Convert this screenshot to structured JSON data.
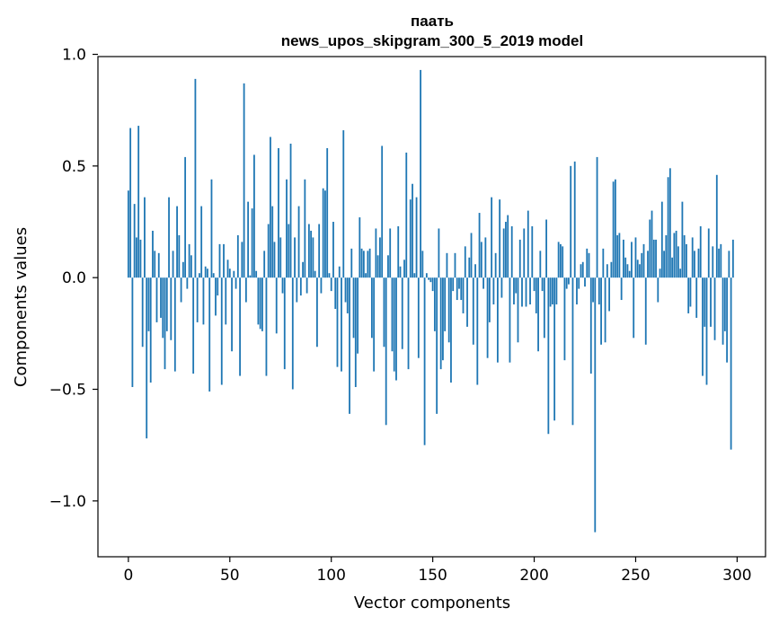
{
  "chart_data": {
    "type": "bar",
    "title": [
      "паать",
      "news_upos_skipgram_300_5_2019 model"
    ],
    "xlabel": "Vector components",
    "ylabel": "Components values",
    "xlim": [
      -15,
      314
    ],
    "ylim": [
      -1.25,
      0.99
    ],
    "xticks": [
      0,
      50,
      100,
      150,
      200,
      250,
      300
    ],
    "yticks": [
      1.0,
      0.5,
      0.0,
      -0.5,
      -1.0
    ],
    "ytick_labels": [
      "1.0",
      "0.5",
      "0.0",
      "−0.5",
      "−1.0"
    ],
    "bar_color": "#1f77b4",
    "grid": false,
    "values": [
      0.39,
      0.67,
      -0.49,
      0.33,
      0.18,
      0.68,
      0.17,
      -0.31,
      0.36,
      -0.72,
      -0.24,
      -0.47,
      0.21,
      0.12,
      -0.2,
      0.11,
      -0.18,
      -0.27,
      -0.41,
      -0.24,
      0.36,
      -0.28,
      0.12,
      -0.42,
      0.32,
      0.19,
      -0.11,
      0.07,
      0.54,
      -0.05,
      0.15,
      0.1,
      -0.43,
      0.89,
      -0.2,
      0.02,
      0.32,
      -0.21,
      0.05,
      0.04,
      -0.51,
      0.44,
      0.02,
      -0.17,
      -0.08,
      0.15,
      -0.48,
      0.15,
      -0.21,
      0.08,
      0.04,
      -0.33,
      0.03,
      -0.05,
      0.19,
      -0.44,
      0.16,
      0.87,
      -0.11,
      0.34,
      0.01,
      0.31,
      0.55,
      0.03,
      -0.21,
      -0.23,
      -0.24,
      0.12,
      -0.44,
      0.24,
      0.63,
      0.32,
      0.16,
      -0.25,
      0.58,
      0.18,
      -0.07,
      -0.41,
      0.44,
      0.24,
      0.6,
      -0.5,
      0.18,
      -0.11,
      0.32,
      -0.08,
      0.07,
      0.44,
      -0.07,
      0.24,
      0.21,
      0.18,
      0.03,
      -0.31,
      0.24,
      -0.07,
      0.4,
      0.39,
      0.58,
      0.02,
      -0.06,
      0.25,
      -0.14,
      -0.4,
      0.05,
      -0.42,
      0.66,
      -0.11,
      -0.16,
      -0.61,
      0.13,
      -0.27,
      -0.49,
      -0.34,
      0.27,
      0.13,
      0.12,
      0.02,
      0.12,
      0.13,
      -0.27,
      -0.42,
      0.22,
      0.1,
      0.18,
      0.59,
      -0.31,
      -0.66,
      0.1,
      0.22,
      -0.33,
      -0.42,
      -0.46,
      0.23,
      0.05,
      -0.32,
      0.08,
      0.56,
      -0.41,
      0.35,
      0.42,
      0.02,
      0.36,
      -0.36,
      0.93,
      0.12,
      -0.75,
      0.02,
      -0.01,
      -0.02,
      -0.06,
      -0.24,
      -0.61,
      0.22,
      -0.41,
      -0.37,
      -0.24,
      0.11,
      -0.29,
      -0.47,
      -0.06,
      0.11,
      -0.1,
      -0.05,
      -0.1,
      -0.16,
      0.14,
      -0.22,
      0.09,
      0.2,
      -0.3,
      0.06,
      -0.48,
      0.29,
      0.16,
      -0.05,
      0.18,
      -0.36,
      -0.2,
      0.36,
      -0.12,
      0.11,
      -0.38,
      0.35,
      -0.09,
      0.22,
      0.25,
      0.28,
      -0.38,
      0.23,
      -0.12,
      -0.07,
      -0.29,
      0.17,
      -0.13,
      0.22,
      -0.13,
      0.3,
      -0.12,
      0.23,
      -0.06,
      -0.16,
      -0.33,
      0.12,
      -0.06,
      -0.27,
      0.26,
      -0.7,
      -0.13,
      -0.12,
      -0.64,
      -0.12,
      0.16,
      0.15,
      0.14,
      -0.37,
      -0.05,
      -0.03,
      0.5,
      -0.66,
      0.52,
      -0.12,
      -0.05,
      0.06,
      0.07,
      -0.04,
      0.13,
      0.11,
      -0.43,
      -0.11,
      -1.14,
      0.54,
      -0.12,
      -0.3,
      0.13,
      -0.29,
      0.06,
      -0.15,
      0.07,
      0.43,
      0.44,
      0.19,
      0.2,
      -0.1,
      0.17,
      0.09,
      0.06,
      0.03,
      0.16,
      -0.27,
      0.18,
      0.08,
      0.06,
      0.11,
      0.15,
      -0.3,
      0.12,
      0.26,
      0.3,
      0.17,
      0.17,
      -0.11,
      0.04,
      0.34,
      0.12,
      0.19,
      0.45,
      0.49,
      0.09,
      0.2,
      0.21,
      0.14,
      0.04,
      0.34,
      0.19,
      0.15,
      -0.16,
      -0.13,
      0.18,
      0.12,
      -0.18,
      0.13,
      0.23,
      -0.44,
      -0.22,
      -0.48,
      0.22,
      -0.22,
      0.14,
      -0.28,
      0.46,
      0.13,
      0.15,
      -0.3,
      -0.24,
      -0.38,
      0.12,
      -0.77,
      0.17
    ]
  }
}
